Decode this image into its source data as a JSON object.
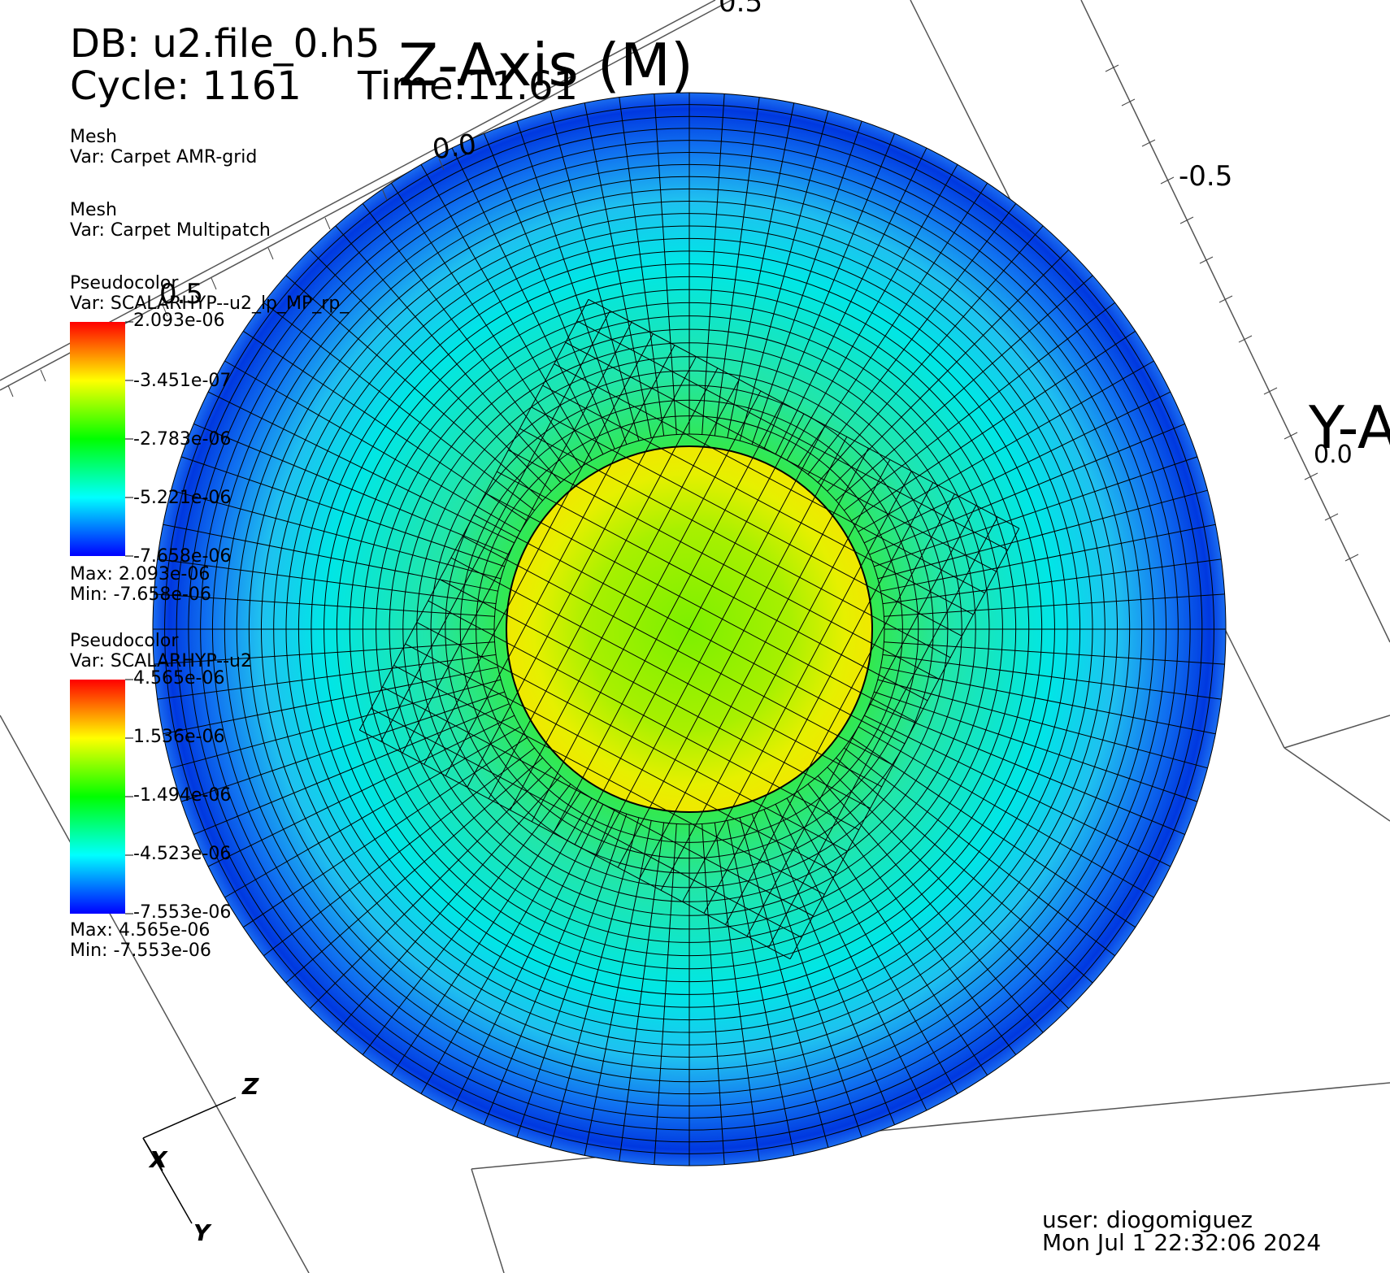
{
  "header": {
    "db_label": "DB: u2.file_0.h5",
    "cycle_label": "Cycle: 1161",
    "time_label": "Time:11.61"
  },
  "axes": {
    "z_title": "Z-Axis (M)",
    "y_title": "Y-A",
    "z_ticks": [
      "0.0",
      "0.5"
    ],
    "z_tick_top_fragment": "0.5",
    "y_ticks": [
      "-0.5",
      "0.0"
    ]
  },
  "legend": {
    "mesh1": {
      "title": "Mesh",
      "var": "Var: Carpet AMR-grid"
    },
    "mesh2": {
      "title": "Mesh",
      "var": "Var: Carpet Multipatch"
    },
    "pseudo1": {
      "title": "Pseudocolor",
      "var": "Var: SCALARHYP--u2_lp_MP_rp_",
      "ticks": [
        "2.093e-06",
        "-3.451e-07",
        "-2.783e-06",
        "-5.221e-06",
        "-7.658e-06"
      ],
      "max": "Max:  2.093e-06",
      "min": "Min: -7.658e-06"
    },
    "pseudo2": {
      "title": "Pseudocolor",
      "var": "Var: SCALARHYP--u2",
      "ticks": [
        "4.565e-06",
        "1.536e-06",
        "-1.494e-06",
        "-4.523e-06",
        "-7.553e-06"
      ],
      "max": "Max:  4.565e-06",
      "min": "Min: -7.553e-06"
    }
  },
  "triad": {
    "z": "Z",
    "x": "X",
    "y": "Y"
  },
  "footer": {
    "user": "user: diogomiguez",
    "date": "Mon Jul  1 22:32:06 2024"
  },
  "colors": {
    "colormap": [
      "#ff0000",
      "#ffff00",
      "#00ff00",
      "#00ffff",
      "#0000ff"
    ],
    "background": "#ffffff",
    "mesh_lines": "#000000"
  }
}
